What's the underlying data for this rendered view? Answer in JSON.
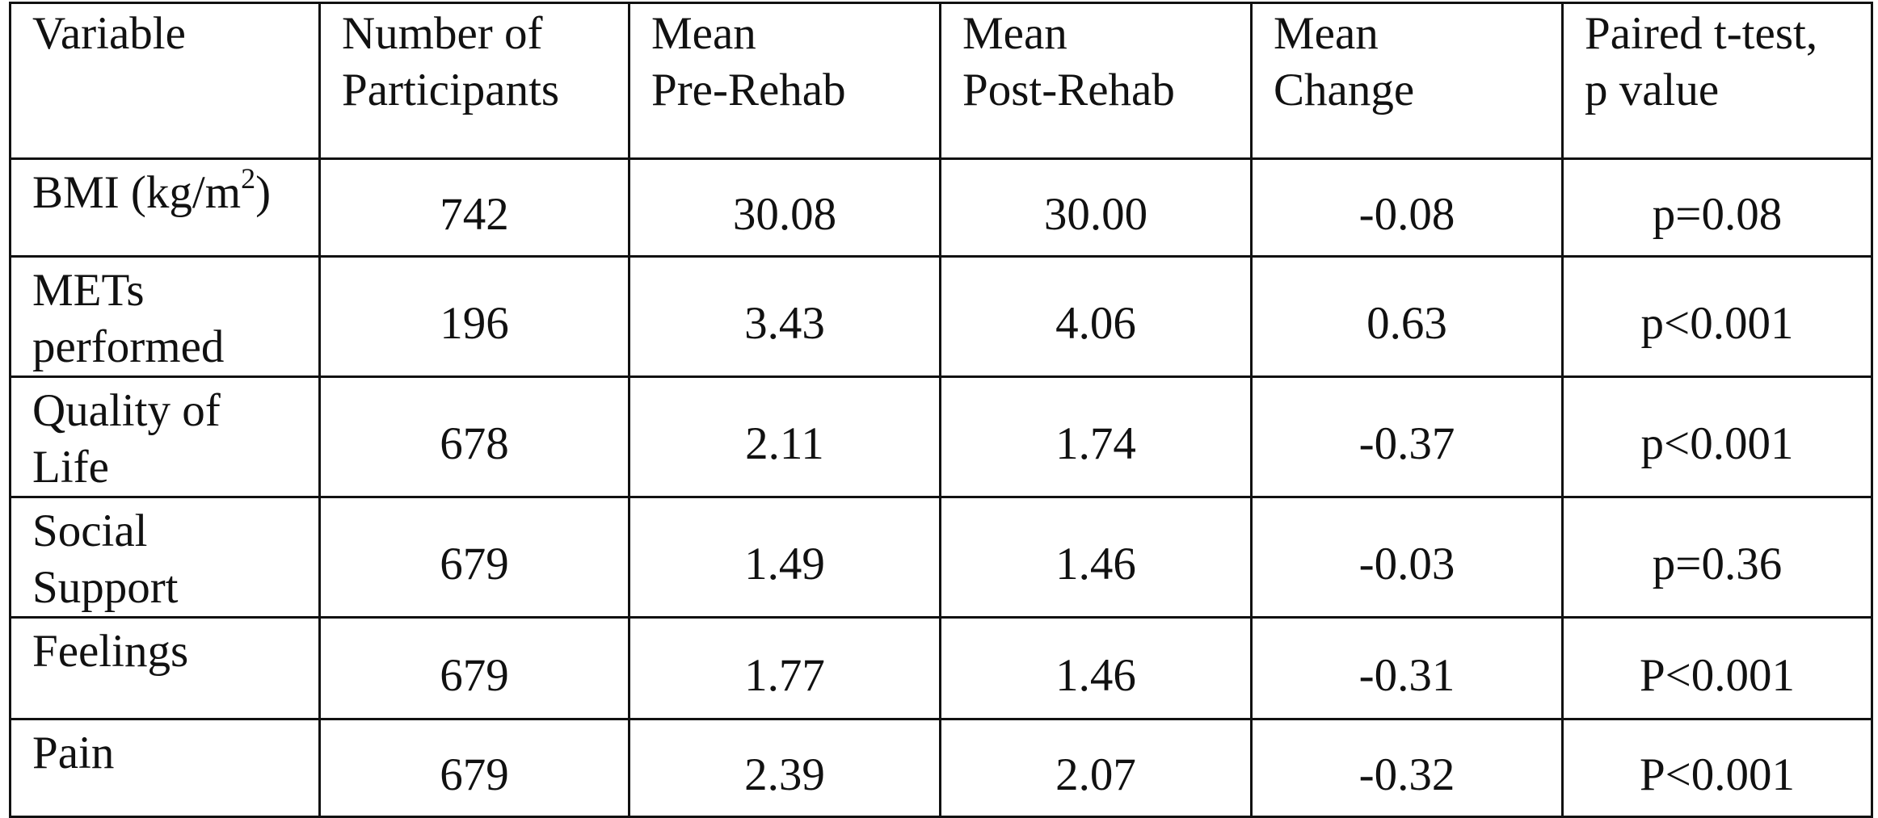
{
  "table": {
    "header": [
      [
        "Variable"
      ],
      [
        "Number of",
        "Participants"
      ],
      [
        "Mean",
        "Pre-Rehab"
      ],
      [
        "Mean",
        "Post-Rehab"
      ],
      [
        "Mean",
        "Change"
      ],
      [
        "Paired t-test,",
        "p value"
      ]
    ],
    "rows": [
      [
        {
          "text": "BMI (kg/m",
          "superscript": "2",
          "suffix": ")"
        },
        "742",
        "30.08",
        "30.00",
        "-0.08",
        "p=0.08"
      ],
      [
        [
          "METs",
          "performed"
        ],
        "196",
        "3.43",
        "4.06",
        "0.63",
        "p<0.001"
      ],
      [
        [
          "Quality of",
          "Life"
        ],
        "678",
        "2.11",
        "1.74",
        "-0.37",
        "p<0.001"
      ],
      [
        [
          "Social",
          "Support"
        ],
        "679",
        "1.49",
        "1.46",
        "-0.03",
        "p=0.36"
      ],
      [
        [
          "Feelings"
        ],
        "679",
        "1.77",
        "1.46",
        "-0.31",
        "P<0.001"
      ],
      [
        [
          "Pain"
        ],
        "679",
        "2.39",
        "2.07",
        "-0.32",
        "P<0.001"
      ]
    ]
  }
}
